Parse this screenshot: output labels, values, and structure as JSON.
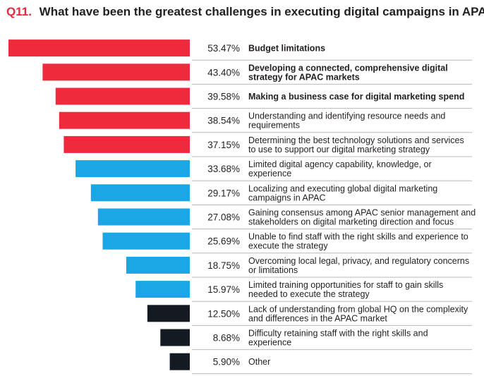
{
  "title": {
    "number": "Q11.",
    "text": "What have been the greatest challenges in executing digital campaigns in APAC?"
  },
  "colors": {
    "red": "#ee2a3c",
    "blue": "#1ba6e5",
    "black": "#141a22",
    "accent": "#e8293b"
  },
  "chart_data": {
    "type": "bar",
    "orientation": "horizontal",
    "title": "What have been the greatest challenges in executing digital campaigns in APAC?",
    "xlim": [
      0,
      53.47
    ],
    "grid": false,
    "categories": [
      "Budget limitations",
      "Developing a connected, comprehensive digital strategy for APAC markets",
      "Making a business case for digital marketing spend",
      "Understanding and identifying resource needs and requirements",
      "Determining the best technology solutions and services to use to support our digital marketing strategy",
      "Limited digital agency capability, knowledge, or experience",
      "Localizing and executing global digital marketing campaigns in APAC",
      "Gaining consensus among APAC senior management and stakeholders on digital marketing direction and focus",
      "Unable to find staff with the right skills and experience to execute the strategy",
      "Overcoming local legal, privacy, and regulatory concerns or limitations",
      "Limited training opportunities for staff to gain skills needed to execute the strategy",
      "Lack of understanding from global HQ on the complexity and differences in the APAC market",
      "Difficulty retaining staff with the right skills and experience",
      "Other"
    ],
    "values": [
      53.47,
      43.4,
      39.58,
      38.54,
      37.15,
      33.68,
      29.17,
      27.08,
      25.69,
      18.75,
      15.97,
      12.5,
      8.68,
      5.9
    ],
    "value_labels": [
      "53.47%",
      "43.40%",
      "39.58%",
      "38.54%",
      "37.15%",
      "33.68%",
      "29.17%",
      "27.08%",
      "25.69%",
      "18.75%",
      "15.97%",
      "12.50%",
      "8.68%",
      "5.90%"
    ],
    "label_lines": [
      [
        "Budget limitations"
      ],
      [
        "Developing a connected, comprehensive digital",
        "strategy for APAC markets"
      ],
      [
        "Making a business case for digital marketing spend"
      ],
      [
        "Understanding and identifying resource needs and",
        "requirements"
      ],
      [
        "Determining the best technology solutions and services",
        "to use to support our digital marketing strategy"
      ],
      [
        "Limited digital agency capability, knowledge, or",
        "experience"
      ],
      [
        "Localizing and executing global digital marketing",
        "campaigns in APAC"
      ],
      [
        "Gaining consensus among APAC senior management and",
        "stakeholders on digital marketing direction and focus"
      ],
      [
        "Unable to find staff with the right skills and experience to",
        "execute the strategy"
      ],
      [
        "Overcoming local legal, privacy, and regulatory concerns",
        "or limitations"
      ],
      [
        "Limited training opportunities for staff to gain skills",
        "needed to execute the strategy"
      ],
      [
        "Lack of understanding from global HQ on the complexity",
        "and differences in the APAC market"
      ],
      [
        "Difficulty retaining staff with the right skills and",
        "experience"
      ],
      [
        "Other"
      ]
    ],
    "bold_labels": [
      true,
      true,
      true,
      false,
      false,
      false,
      false,
      false,
      false,
      false,
      false,
      false,
      false,
      false
    ],
    "bar_colors": [
      "red",
      "red",
      "red",
      "red",
      "red",
      "blue",
      "blue",
      "blue",
      "blue",
      "blue",
      "blue",
      "black",
      "black",
      "black"
    ]
  }
}
